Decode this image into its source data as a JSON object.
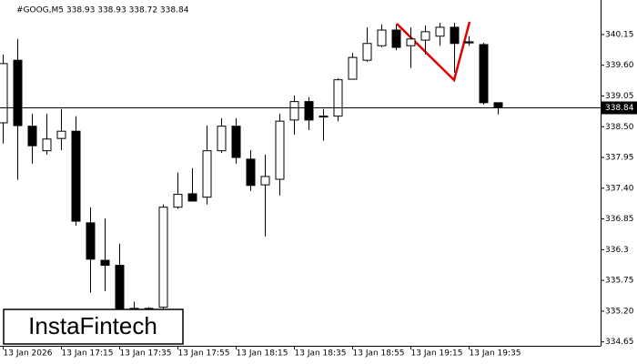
{
  "chart_data": {
    "type": "candlestick",
    "title": "#GOOG,M5  338.93 338.93 338.72 338.84",
    "watermark": "InstaFintech",
    "categories": [
      "13 Jan 2026",
      null,
      null,
      null,
      "13 Jan 17:15",
      null,
      null,
      null,
      "13 Jan 17:35",
      null,
      null,
      null,
      "13 Jan 17:55",
      null,
      null,
      null,
      "13 Jan 18:15",
      null,
      null,
      null,
      "13 Jan 18:35",
      null,
      null,
      null,
      "13 Jan 18:55",
      null,
      null,
      null,
      "13 Jan 19:15",
      null,
      null,
      null,
      "13 Jan 19:35",
      null,
      null
    ],
    "open": [
      338.57,
      339.69,
      338.51,
      338.07,
      338.29,
      338.42,
      336.78,
      336.11,
      336.02,
      335.24,
      335.24,
      335.27,
      337.06,
      337.3,
      337.24,
      338.07,
      338.51,
      337.92,
      337.46,
      337.56,
      338.62,
      338.95,
      338.69,
      338.69,
      339.35,
      339.69,
      339.95,
      340.23,
      339.95,
      340.05,
      340.12,
      340.28,
      340.02,
      339.97,
      338.93
    ],
    "high": [
      339.79,
      340.07,
      338.73,
      338.73,
      338.82,
      338.69,
      337.06,
      336.86,
      336.41,
      335.37,
      335.27,
      337.11,
      337.68,
      337.76,
      338.52,
      338.65,
      338.65,
      338.08,
      338.0,
      338.73,
      339.06,
      339.03,
      338.82,
      339.37,
      339.82,
      340.28,
      340.33,
      340.33,
      340.28,
      340.31,
      340.36,
      340.36,
      340.12,
      340.0,
      338.93
    ],
    "low": [
      338.2,
      337.55,
      337.84,
      338.0,
      338.08,
      336.73,
      335.53,
      335.56,
      335.07,
      335.15,
      335.22,
      335.24,
      337.03,
      337.16,
      337.11,
      338.03,
      337.84,
      337.35,
      336.54,
      337.27,
      338.36,
      338.44,
      338.25,
      338.6,
      339.34,
      339.66,
      339.92,
      339.87,
      339.55,
      339.79,
      339.95,
      339.47,
      339.95,
      338.9,
      338.72
    ],
    "close": [
      339.63,
      338.52,
      338.16,
      338.28,
      338.42,
      336.81,
      336.13,
      336.02,
      335.15,
      335.25,
      335.25,
      337.06,
      337.29,
      337.17,
      338.07,
      338.51,
      337.95,
      337.45,
      337.61,
      338.6,
      338.95,
      338.62,
      338.69,
      339.34,
      339.74,
      339.99,
      340.23,
      339.92,
      340.07,
      340.2,
      340.28,
      339.99,
      340.0,
      338.93,
      338.84
    ],
    "last_price": 338.84,
    "ylim": [
      334.58,
      340.67
    ],
    "yticks": [
      {
        "value": 334.65,
        "label": "334.65"
      },
      {
        "value": 335.2,
        "label": "335.20"
      },
      335.75,
      336.3,
      {
        "value": 336.85,
        "label": "336.85"
      },
      {
        "value": 337.4,
        "label": "337.40"
      },
      337.95,
      {
        "value": 338.5,
        "label": "338.50"
      },
      339.05,
      {
        "value": 339.6,
        "label": "339.60"
      },
      340.15
    ]
  }
}
